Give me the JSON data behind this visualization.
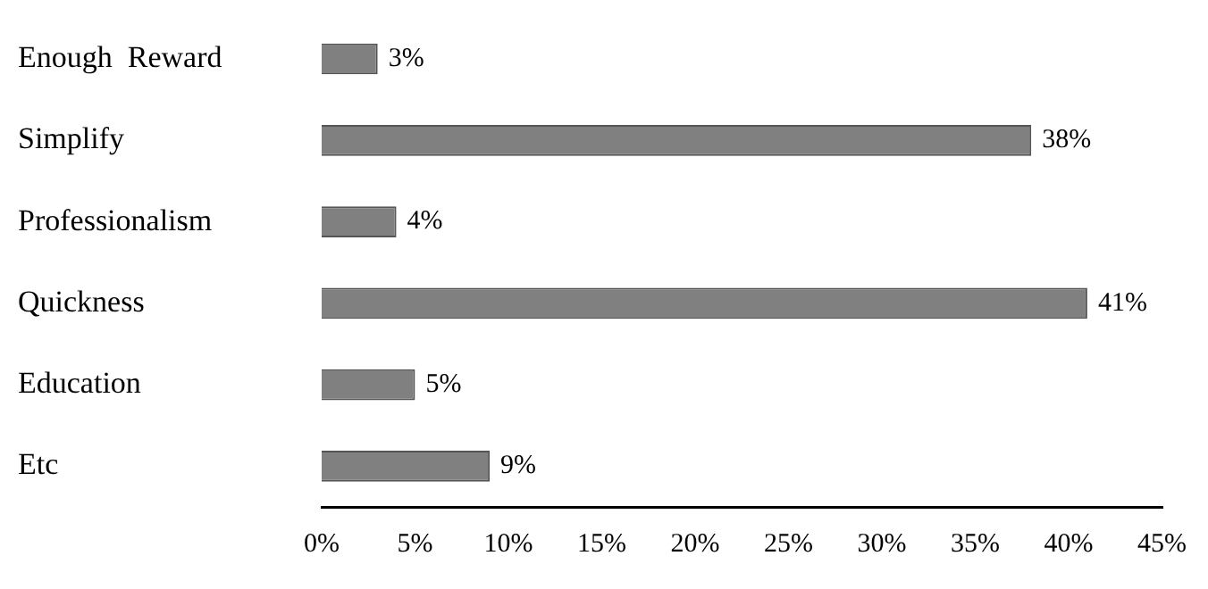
{
  "chart_data": {
    "type": "bar",
    "orientation": "horizontal",
    "categories": [
      "Enough  Reward",
      "Simplify",
      "Professionalism",
      "Quickness",
      "Education",
      "Etc"
    ],
    "values": [
      3,
      38,
      4,
      41,
      5,
      9
    ],
    "value_labels": [
      "3%",
      "38%",
      "4%",
      "41%",
      "5%",
      "9%"
    ],
    "color": "#808080",
    "xlim": [
      0,
      45
    ],
    "xticks": [
      {
        "value": 0,
        "label": "0%"
      },
      {
        "value": 5,
        "label": "5%"
      },
      {
        "value": 10,
        "label": "10%"
      },
      {
        "value": 15,
        "label": "15%"
      },
      {
        "value": 20,
        "label": "20%"
      },
      {
        "value": 25,
        "label": "25%"
      },
      {
        "value": 30,
        "label": "30%"
      },
      {
        "value": 35,
        "label": "35%"
      },
      {
        "value": 40,
        "label": "40%"
      },
      {
        "value": 45,
        "label": "45%"
      }
    ],
    "grid": false,
    "legend": false
  }
}
